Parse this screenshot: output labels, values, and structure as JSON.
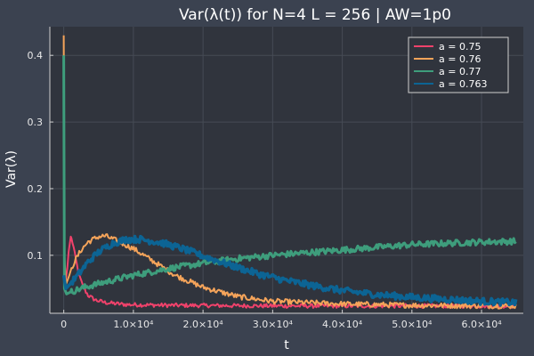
{
  "chart_data": {
    "type": "line",
    "title": "Var(λ(t)) for N=4 L = 256 | AW=1p0",
    "xlabel": "t",
    "ylabel": "Var(λ)",
    "xlim": [
      -2000,
      66000
    ],
    "ylim": [
      0.013,
      0.443
    ],
    "x_ticks": [
      {
        "value": 0,
        "label": "0"
      },
      {
        "value": 10000,
        "label": "1.0×10⁴"
      },
      {
        "value": 20000,
        "label": "2.0×10⁴"
      },
      {
        "value": 30000,
        "label": "3.0×10⁴"
      },
      {
        "value": 40000,
        "label": "4.0×10⁴"
      },
      {
        "value": 50000,
        "label": "5.0×10⁴"
      },
      {
        "value": 60000,
        "label": "6.0×10⁴"
      }
    ],
    "y_ticks": [
      {
        "value": 0.1,
        "label": "0.1"
      },
      {
        "value": 0.2,
        "label": "0.2"
      },
      {
        "value": 0.3,
        "label": "0.3"
      },
      {
        "value": 0.4,
        "label": "0.4"
      }
    ],
    "grid": true,
    "legend_position": "top-right",
    "series": [
      {
        "name": "a = 0.75",
        "color": "#f0426b",
        "noise": 0.003,
        "width": 2,
        "points": [
          [
            0,
            0.37
          ],
          [
            100,
            0.09
          ],
          [
            250,
            0.06
          ],
          [
            500,
            0.08
          ],
          [
            700,
            0.105
          ],
          [
            1000,
            0.128
          ],
          [
            1300,
            0.118
          ],
          [
            1700,
            0.095
          ],
          [
            2200,
            0.07
          ],
          [
            2800,
            0.052
          ],
          [
            3500,
            0.04
          ],
          [
            4500,
            0.033
          ],
          [
            6000,
            0.029
          ],
          [
            9000,
            0.026
          ],
          [
            15000,
            0.025
          ],
          [
            30000,
            0.024
          ],
          [
            65000,
            0.024
          ]
        ]
      },
      {
        "name": "a = 0.76",
        "color": "#f5a45a",
        "noise": 0.004,
        "width": 2,
        "points": [
          [
            0,
            0.43
          ],
          [
            100,
            0.1
          ],
          [
            300,
            0.056
          ],
          [
            800,
            0.07
          ],
          [
            1500,
            0.09
          ],
          [
            2500,
            0.108
          ],
          [
            3500,
            0.12
          ],
          [
            5000,
            0.128
          ],
          [
            6000,
            0.129
          ],
          [
            8000,
            0.12
          ],
          [
            10000,
            0.11
          ],
          [
            13000,
            0.09
          ],
          [
            16000,
            0.07
          ],
          [
            20000,
            0.052
          ],
          [
            25000,
            0.038
          ],
          [
            30000,
            0.031
          ],
          [
            40000,
            0.027
          ],
          [
            50000,
            0.025
          ],
          [
            65000,
            0.024
          ]
        ]
      },
      {
        "name": "a = 0.77",
        "color": "#3e9d7c",
        "noise": 0.0045,
        "width": 3,
        "points": [
          [
            0,
            0.4
          ],
          [
            100,
            0.05
          ],
          [
            400,
            0.042
          ],
          [
            1000,
            0.045
          ],
          [
            3000,
            0.052
          ],
          [
            6000,
            0.06
          ],
          [
            10000,
            0.07
          ],
          [
            15000,
            0.08
          ],
          [
            20000,
            0.088
          ],
          [
            25000,
            0.095
          ],
          [
            30000,
            0.1
          ],
          [
            35000,
            0.104
          ],
          [
            40000,
            0.108
          ],
          [
            45000,
            0.112
          ],
          [
            50000,
            0.116
          ],
          [
            55000,
            0.118
          ],
          [
            60000,
            0.12
          ],
          [
            65000,
            0.121
          ]
        ]
      },
      {
        "name": "a = 0.763",
        "color": "#0c6494",
        "noise": 0.005,
        "width": 3.5,
        "points": [
          [
            0,
            0.07
          ],
          [
            300,
            0.05
          ],
          [
            1000,
            0.058
          ],
          [
            2000,
            0.07
          ],
          [
            3500,
            0.09
          ],
          [
            5000,
            0.105
          ],
          [
            7000,
            0.118
          ],
          [
            9000,
            0.124
          ],
          [
            11000,
            0.124
          ],
          [
            14000,
            0.119
          ],
          [
            17000,
            0.11
          ],
          [
            20000,
            0.099
          ],
          [
            24000,
            0.085
          ],
          [
            28000,
            0.072
          ],
          [
            32000,
            0.062
          ],
          [
            36000,
            0.054
          ],
          [
            40000,
            0.047
          ],
          [
            45000,
            0.041
          ],
          [
            50000,
            0.037
          ],
          [
            55000,
            0.034
          ],
          [
            60000,
            0.031
          ],
          [
            65000,
            0.029
          ]
        ]
      }
    ]
  }
}
